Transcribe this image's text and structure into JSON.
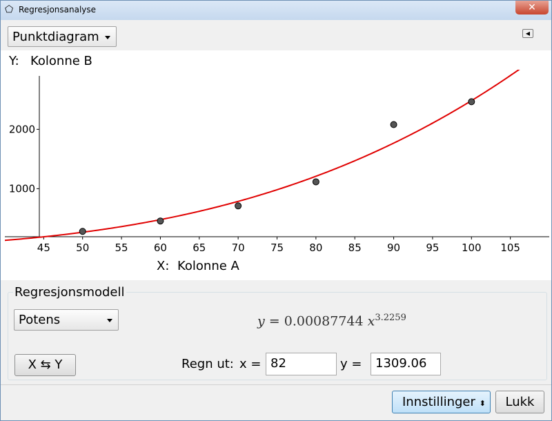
{
  "window": {
    "title": "Regresjonsanalyse"
  },
  "toolbar": {
    "plot_type": "Punktdiagram"
  },
  "chart_data": {
    "type": "scatter",
    "y_label_prefix": "Y:",
    "y_label": "Kolonne B",
    "x_label_prefix": "X:",
    "x_label": "Kolonne A",
    "x": [
      50,
      60,
      70,
      80,
      90,
      100
    ],
    "values": [
      280,
      455,
      710,
      1115,
      2080,
      2465
    ],
    "color": "#555555",
    "curve_color": "#e00000",
    "xlim": [
      40,
      110
    ],
    "xticks": [
      45,
      50,
      55,
      60,
      65,
      70,
      75,
      80,
      85,
      90,
      95,
      100,
      105
    ],
    "ylim": [
      190,
      2900
    ],
    "yticks": [
      1000,
      2000
    ]
  },
  "regression": {
    "section_title": "Regresjonsmodell",
    "model": "Potens",
    "equation_lhs": "y =",
    "coefficient": 0.00087744,
    "variable": "x",
    "exponent": 3.2259,
    "swap_button": "X ⇆ Y",
    "evaluate_label": "Regn ut:",
    "x_field_label": "x =",
    "x_input": 82,
    "y_field_label": "y =",
    "y_output": 1309.06
  },
  "footer": {
    "settings_button": "Innstillinger",
    "close_button": "Lukk"
  }
}
